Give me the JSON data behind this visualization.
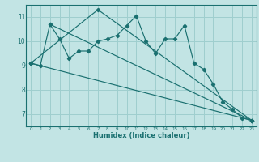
{
  "xlabel": "Humidex (Indice chaleur)",
  "bg_color": "#c2e4e4",
  "grid_color": "#9ecece",
  "line_color": "#1a7070",
  "xlim": [
    -0.5,
    23.5
  ],
  "ylim": [
    6.5,
    11.5
  ],
  "yticks": [
    7,
    8,
    9,
    10,
    11
  ],
  "xticks": [
    0,
    1,
    2,
    3,
    4,
    5,
    6,
    7,
    8,
    9,
    10,
    11,
    12,
    13,
    14,
    15,
    16,
    17,
    18,
    19,
    20,
    21,
    22,
    23
  ],
  "line1_x": [
    0,
    1,
    2,
    3,
    4,
    5,
    6,
    7,
    8,
    9,
    10,
    11,
    12,
    13,
    14,
    15,
    16,
    17,
    18,
    19,
    20,
    21,
    22,
    23
  ],
  "line1_y": [
    9.1,
    9.0,
    10.7,
    10.1,
    9.3,
    9.6,
    9.6,
    10.0,
    10.1,
    10.25,
    10.65,
    11.05,
    10.0,
    9.5,
    10.1,
    10.1,
    10.65,
    9.1,
    8.85,
    8.25,
    7.5,
    7.2,
    6.85,
    6.75
  ],
  "line2_x": [
    0,
    23
  ],
  "line2_y": [
    9.1,
    6.75
  ],
  "line3_x": [
    0,
    7,
    23
  ],
  "line3_y": [
    9.1,
    11.3,
    6.75
  ],
  "line4_x": [
    2,
    23
  ],
  "line4_y": [
    10.7,
    6.75
  ]
}
